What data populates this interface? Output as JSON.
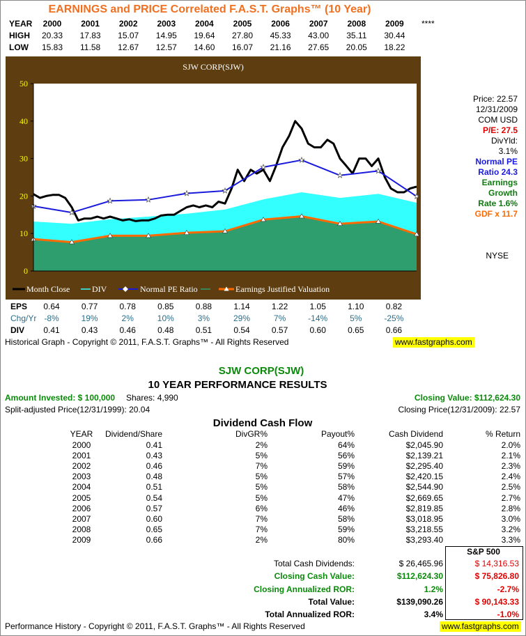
{
  "header": {
    "title": "EARNINGS and PRICE Correlated F.A.S.T. Graphs™ (10 Year)",
    "labels": [
      "YEAR",
      "HIGH",
      "LOW"
    ],
    "years": [
      "2000",
      "2001",
      "2002",
      "2003",
      "2004",
      "2005",
      "2006",
      "2007",
      "2008",
      "2009"
    ],
    "high": [
      "20.33",
      "17.83",
      "15.07",
      "14.95",
      "19.64",
      "27.80",
      "45.33",
      "43.00",
      "35.11",
      "30.44"
    ],
    "low": [
      "15.83",
      "11.58",
      "12.67",
      "12.57",
      "14.60",
      "16.07",
      "21.16",
      "27.65",
      "20.05",
      "18.22"
    ],
    "note": "****"
  },
  "chart_data": {
    "type": "line",
    "title": "SJW CORP(SJW)",
    "ylim": [
      0,
      50
    ],
    "yticks": [
      0,
      10,
      20,
      30,
      40,
      50
    ],
    "xlim": [
      0,
      10
    ],
    "x": [
      0,
      1,
      2,
      3,
      4,
      5,
      6,
      7,
      8,
      9,
      10
    ],
    "grid": false,
    "series": [
      {
        "name": "Month Close",
        "color": "#000000",
        "x": [
          0,
          0.17,
          0.33,
          0.5,
          0.67,
          0.83,
          1,
          1.17,
          1.33,
          1.5,
          1.67,
          1.83,
          2,
          2.17,
          2.33,
          2.5,
          2.67,
          2.83,
          3,
          3.17,
          3.33,
          3.5,
          3.67,
          3.83,
          4,
          4.17,
          4.33,
          4.5,
          4.67,
          4.83,
          5,
          5.17,
          5.33,
          5.5,
          5.67,
          5.83,
          6,
          6.17,
          6.33,
          6.5,
          6.67,
          6.83,
          7,
          7.17,
          7.33,
          7.5,
          7.67,
          7.83,
          8,
          8.17,
          8.33,
          8.5,
          8.67,
          8.83,
          9,
          9.17,
          9.33,
          9.5,
          9.67,
          9.83,
          10
        ],
        "values": [
          20.5,
          19.5,
          20,
          20.3,
          20.3,
          19.5,
          17,
          13.5,
          14,
          14,
          14.5,
          14,
          14.5,
          14,
          13.5,
          13.8,
          13.3,
          13.5,
          13.5,
          14,
          14.8,
          15,
          15,
          16,
          17,
          17.5,
          17,
          17.5,
          17,
          18.5,
          18,
          22,
          27,
          24,
          27,
          26,
          27,
          24,
          28,
          33,
          36,
          40,
          38,
          34,
          33,
          33,
          35,
          34,
          30,
          28,
          26,
          30,
          30,
          28,
          30,
          25,
          22,
          21,
          21,
          22,
          22.5
        ]
      },
      {
        "name": "DIV",
        "color": "#33ffff",
        "values": [
          13.2,
          12.6,
          13.8,
          14.5,
          15.3,
          16.4,
          19.1,
          21.0,
          19.5,
          20.6,
          18.2
        ]
      },
      {
        "name": "Normal PE Ratio",
        "color": "#1a1add",
        "values": [
          17.3,
          15.6,
          18.7,
          19.0,
          20.7,
          21.4,
          27.7,
          29.6,
          25.5,
          26.7,
          19.9
        ]
      },
      {
        "name": "Earnings Justified Valuation",
        "color": "#ff6a00",
        "fill_color": "#2f9e6f",
        "values": [
          8.5,
          7.7,
          9.4,
          9.4,
          10.2,
          10.6,
          13.7,
          14.6,
          12.6,
          13.2,
          9.8
        ]
      }
    ]
  },
  "side_panel": [
    {
      "text": "Price: 22.57",
      "color": "#000000"
    },
    {
      "text": "12/31/2009",
      "color": "#000000"
    },
    {
      "text": "COM USD",
      "color": "#000000"
    },
    {
      "text": "P/E: 27.5",
      "color": "#e00000"
    },
    {
      "text": "DivYld:",
      "color": "#000000"
    },
    {
      "text": "3.1%",
      "color": "#000000"
    },
    {
      "text": "Normal PE",
      "color": "#1a1add"
    },
    {
      "text": "Ratio  24.3",
      "color": "#1a1add"
    },
    {
      "text": "Earnings",
      "color": "#107a10"
    },
    {
      "text": "Growth",
      "color": "#107a10"
    },
    {
      "text": "Rate  1.6%",
      "color": "#107a10"
    },
    {
      "text": "GDF x 11.7",
      "color": "#ff6a00"
    }
  ],
  "exchange": "NYSE",
  "fundamentals": {
    "labels": [
      "EPS",
      "Chg/Yr",
      "DIV"
    ],
    "eps": [
      "0.64",
      "0.77",
      "0.78",
      "0.85",
      "0.88",
      "1.14",
      "1.22",
      "1.05",
      "1.10",
      "0.82"
    ],
    "chg": [
      "-8%",
      "19%",
      "2%",
      "10%",
      "3%",
      "29%",
      "7%",
      "-14%",
      "5%",
      "-25%"
    ],
    "div": [
      "0.41",
      "0.43",
      "0.46",
      "0.48",
      "0.51",
      "0.54",
      "0.57",
      "0.60",
      "0.65",
      "0.66"
    ]
  },
  "graph_footer": "Historical Graph - Copyright © 2011, F.A.S.T. Graphs™ - All Rights Reserved",
  "website": "www.fastgraphs.com",
  "performance": {
    "title": "SJW CORP(SJW)",
    "subtitle": "10 YEAR PERFORMANCE RESULTS",
    "amount_invested": "Amount Invested: $ 100,000",
    "shares": "Shares: 4,990",
    "closing_value": "Closing Value: $112,624.30",
    "split_price": "Split-adjusted Price(12/31/1999): 20.04",
    "closing_price": "Closing Price(12/31/2009): 22.57"
  },
  "dividend_table": {
    "title": "Dividend Cash Flow",
    "columns": [
      "YEAR",
      "Dividend/Share",
      "DivGR%",
      "Payout%",
      "Cash Dividend",
      "% Return"
    ],
    "rows": [
      [
        "2000",
        "0.41",
        "2%",
        "64%",
        "$2,045.90",
        "2.0%"
      ],
      [
        "2001",
        "0.43",
        "5%",
        "56%",
        "$2,139.21",
        "2.1%"
      ],
      [
        "2002",
        "0.46",
        "7%",
        "59%",
        "$2,295.40",
        "2.3%"
      ],
      [
        "2003",
        "0.48",
        "5%",
        "57%",
        "$2,420.15",
        "2.4%"
      ],
      [
        "2004",
        "0.51",
        "5%",
        "58%",
        "$2,544.90",
        "2.5%"
      ],
      [
        "2005",
        "0.54",
        "5%",
        "47%",
        "$2,669.65",
        "2.7%"
      ],
      [
        "2006",
        "0.57",
        "6%",
        "46%",
        "$2,819.85",
        "2.8%"
      ],
      [
        "2007",
        "0.60",
        "7%",
        "58%",
        "$3,018.95",
        "3.0%"
      ],
      [
        "2008",
        "0.65",
        "7%",
        "59%",
        "$3,218.55",
        "3.2%"
      ],
      [
        "2009",
        "0.66",
        "2%",
        "80%",
        "$3,293.40",
        "3.3%"
      ]
    ]
  },
  "summary": {
    "sp500_header": "S&P 500",
    "rows": [
      {
        "label": "Total Cash Dividends:",
        "value": "$ 26,465.96",
        "sp500": "$ 14,316.53"
      },
      {
        "label": "Closing Cash Value:",
        "value": "$112,624.30",
        "sp500": "$ 75,826.80"
      },
      {
        "label": "Closing Annualized ROR:",
        "value": "1.2%",
        "sp500": "-2.7%"
      },
      {
        "label": "Total Value:",
        "value": "$139,090.26",
        "sp500": "$ 90,143.33"
      },
      {
        "label": "Total Annualized ROR:",
        "value": "3.4%",
        "sp500": "-1.0%"
      }
    ]
  },
  "performance_footer": "Performance History - Copyright © 2011, F.A.S.T. Graphs™ - All Rights Reserved"
}
